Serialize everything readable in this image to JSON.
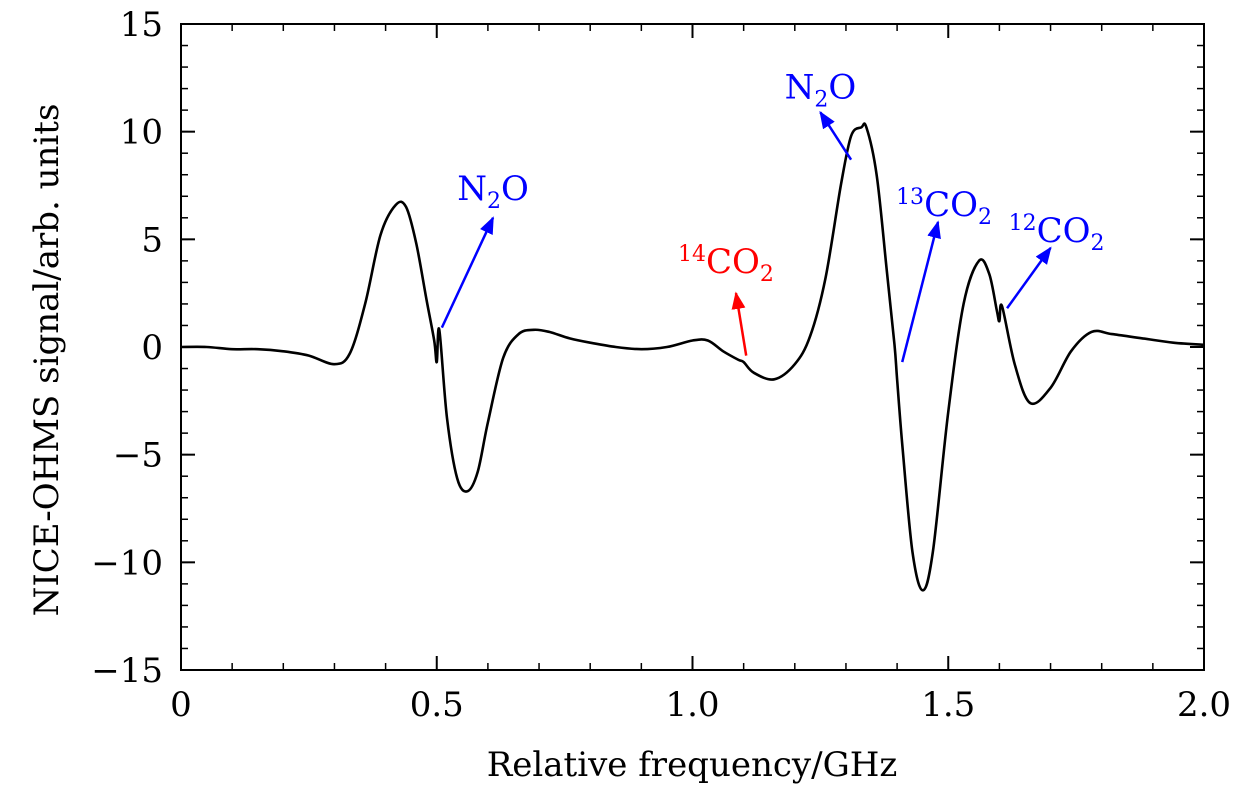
{
  "chart_data": {
    "type": "line",
    "xlabel": "Relative frequency/GHz",
    "ylabel": "NICE-OHMS signal/arb. units",
    "xlim": [
      0,
      2.0
    ],
    "ylim": [
      -15,
      15
    ],
    "x_ticks": [
      {
        "value": 0,
        "label": "0"
      },
      {
        "value": 0.5,
        "label": "0.5"
      },
      {
        "value": 1.0,
        "label": "1.0"
      },
      {
        "value": 1.5,
        "label": "1.5"
      },
      {
        "value": 2.0,
        "label": "2.0"
      }
    ],
    "y_ticks": [
      {
        "value": 15,
        "label": "15"
      },
      {
        "value": 10,
        "label": "10"
      },
      {
        "value": 5,
        "label": "5"
      },
      {
        "value": 0,
        "label": "0"
      },
      {
        "value": -5,
        "label": "−5"
      },
      {
        "value": -10,
        "label": "−10"
      },
      {
        "value": -15,
        "label": "−15"
      }
    ],
    "x_minor_step": 0.1,
    "y_minor_step": 1,
    "grid": false,
    "line_color": "#000000",
    "series": [
      {
        "x": [
          0,
          0.05,
          0.1,
          0.15,
          0.2,
          0.25,
          0.3,
          0.33,
          0.36,
          0.39,
          0.42,
          0.44,
          0.46,
          0.48,
          0.495,
          0.5,
          0.505,
          0.52,
          0.54,
          0.56,
          0.58,
          0.6,
          0.63,
          0.66,
          0.69,
          0.72,
          0.76,
          0.8,
          0.85,
          0.9,
          0.95,
          1.0,
          1.03,
          1.06,
          1.09,
          1.1,
          1.12,
          1.16,
          1.2,
          1.23,
          1.26,
          1.29,
          1.31,
          1.33,
          1.34,
          1.36,
          1.38,
          1.395,
          1.4,
          1.41,
          1.43,
          1.45,
          1.47,
          1.5,
          1.53,
          1.56,
          1.58,
          1.595,
          1.6,
          1.605,
          1.63,
          1.66,
          1.7,
          1.74,
          1.78,
          1.82,
          1.88,
          1.94,
          2.0
        ],
        "y": [
          0,
          0,
          -0.1,
          -0.1,
          -0.2,
          -0.4,
          -0.8,
          -0.3,
          2.0,
          5.2,
          6.6,
          6.5,
          4.8,
          2.2,
          0.3,
          -0.7,
          0.8,
          -3.3,
          -6.1,
          -6.7,
          -5.8,
          -3.5,
          -0.5,
          0.6,
          0.8,
          0.7,
          0.4,
          0.2,
          0.0,
          -0.1,
          0.0,
          0.3,
          0.3,
          -0.2,
          -0.6,
          -0.7,
          -1.2,
          -1.5,
          -0.8,
          0.5,
          3.2,
          7.5,
          9.8,
          10.2,
          10.2,
          8.0,
          3.5,
          0.1,
          -1.5,
          -4.5,
          -9.5,
          -11.3,
          -9.5,
          -3.0,
          2.0,
          4.0,
          3.4,
          1.7,
          1.2,
          1.9,
          -0.8,
          -2.6,
          -1.9,
          -0.2,
          0.7,
          0.6,
          0.4,
          0.2,
          0.1
        ]
      }
    ],
    "annotations": [
      {
        "label": "N",
        "sub": "2",
        "suffix": "O",
        "sup": "",
        "color": "#0000ff",
        "point": [
          0.51,
          0.9
        ],
        "tip": [
          0.61,
          6.0
        ]
      },
      {
        "label": "",
        "sub": "2",
        "suffix": "",
        "sup": "14",
        "main": "CO",
        "color": "#ff0000",
        "point": [
          1.105,
          -0.4
        ],
        "tip": [
          1.085,
          2.5
        ]
      },
      {
        "label": "N",
        "sub": "2",
        "suffix": "O",
        "sup": "",
        "color": "#0000ff",
        "point": [
          1.31,
          8.7
        ],
        "tip": [
          1.25,
          10.9
        ]
      },
      {
        "label": "",
        "sub": "2",
        "suffix": "",
        "sup": "13",
        "main": "CO",
        "color": "#0000ff",
        "point": [
          1.41,
          -0.7
        ],
        "tip": [
          1.48,
          5.8
        ]
      },
      {
        "label": "",
        "sub": "2",
        "suffix": "",
        "sup": "12",
        "main": "CO",
        "color": "#0000ff",
        "point": [
          1.615,
          1.8
        ],
        "tip": [
          1.7,
          4.6
        ]
      }
    ]
  }
}
